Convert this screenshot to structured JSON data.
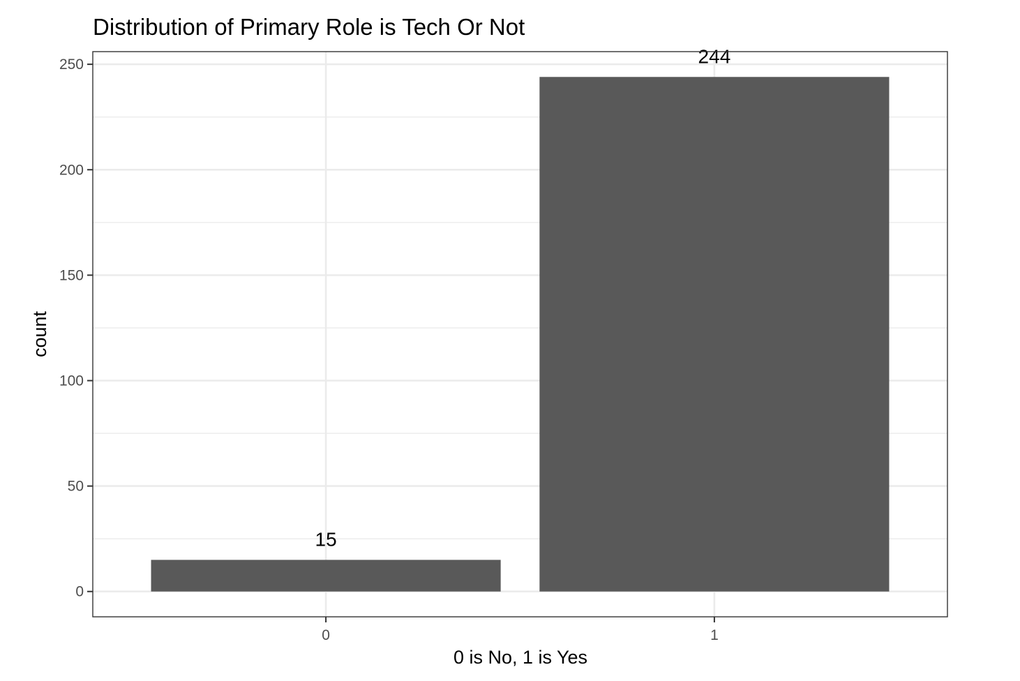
{
  "chart_data": {
    "type": "bar",
    "title": "Distribution of Primary Role is Tech Or Not",
    "xlabel": "0 is No, 1 is Yes",
    "ylabel": "count",
    "categories": [
      "0",
      "1"
    ],
    "values": [
      15,
      244
    ],
    "data_labels": [
      "15",
      "244"
    ],
    "y_ticks": [
      0,
      50,
      100,
      150,
      200,
      250
    ],
    "y_tick_labels": [
      "0",
      "50",
      "100",
      "150",
      "200",
      "250"
    ],
    "ylim": [
      -12,
      256
    ],
    "grid": true,
    "legend": "none",
    "colors": {
      "bar": "#595959",
      "panel_border": "#333333",
      "grid": "#ebebeb",
      "tick_label": "#4d4d4d",
      "background": "#ffffff"
    }
  }
}
